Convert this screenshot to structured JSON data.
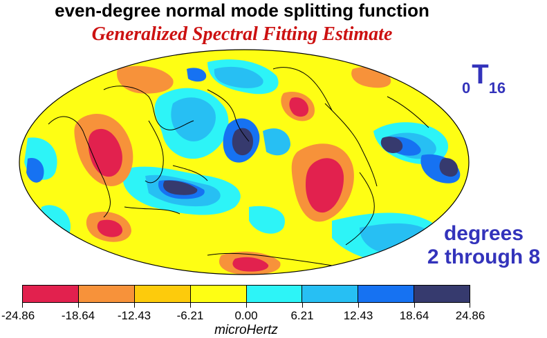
{
  "title": "even-degree normal mode splitting function",
  "subtitle": "Generalized Spectral Fitting Estimate",
  "mode": {
    "prefix": "0",
    "letter": "T",
    "suffix": "16"
  },
  "degrees": {
    "line1": "degrees",
    "line2": "2 through 8"
  },
  "colorbar": {
    "units": "microHertz",
    "ticks": [
      "-24.86",
      "-18.64",
      "-12.43",
      "-6.21",
      "0.00",
      "6.21",
      "12.43",
      "18.64",
      "24.86"
    ],
    "colors": [
      "#e2214e",
      "#f7923a",
      "#fdcb0c",
      "#fefe14",
      "#2df4f7",
      "#27bff3",
      "#1672f2",
      "#363a6e"
    ]
  }
}
